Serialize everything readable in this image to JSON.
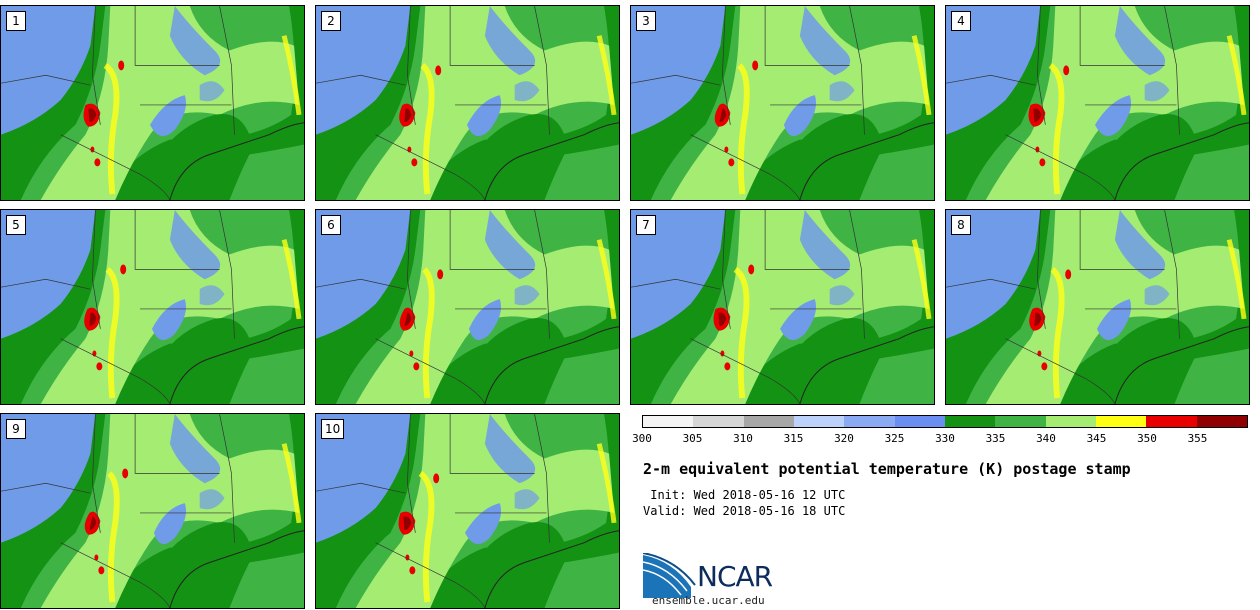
{
  "panels": [
    {
      "label": "1"
    },
    {
      "label": "2"
    },
    {
      "label": "3"
    },
    {
      "label": "4"
    },
    {
      "label": "5"
    },
    {
      "label": "6"
    },
    {
      "label": "7"
    },
    {
      "label": "8"
    },
    {
      "label": "9"
    },
    {
      "label": "10"
    }
  ],
  "colorbar": {
    "colors": [
      "#f4f4f4",
      "#d6d6d6",
      "#a7a7a7",
      "#bcd2fb",
      "#8aaaf4",
      "#6b8ff0",
      "#149214",
      "#3fb444",
      "#a5ec73",
      "#ffff14",
      "#e80000",
      "#900000"
    ],
    "ticks": [
      "300",
      "305",
      "310",
      "315",
      "320",
      "325",
      "330",
      "335",
      "340",
      "345",
      "350",
      "355"
    ]
  },
  "title": "2-m equivalent potential temperature (K) postage stamp",
  "init": " Init: Wed 2018-05-16 12 UTC",
  "valid": "Valid: Wed 2018-05-16 18 UTC",
  "logo": {
    "text": "NCAR",
    "site": "ensemble.ucar.edu"
  }
}
